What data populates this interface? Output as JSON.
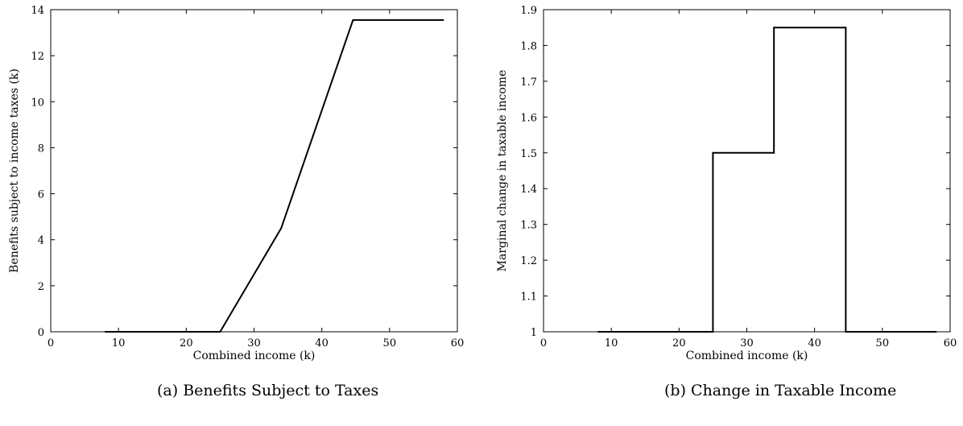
{
  "chart_data": [
    {
      "type": "line",
      "caption": "(a) Benefits Subject to Taxes",
      "xlabel": "Combined income (k)",
      "ylabel": "Benefits subject to income taxes (k)",
      "xlim": [
        0,
        60
      ],
      "ylim": [
        0,
        14
      ],
      "xticks": [
        0,
        10,
        20,
        30,
        40,
        50,
        60
      ],
      "yticks": [
        0,
        2,
        4,
        6,
        8,
        10,
        12,
        14
      ],
      "grid": false,
      "series": [
        {
          "x": [
            8,
            25,
            34,
            44.6,
            58
          ],
          "y": [
            0,
            0,
            4.5,
            13.55,
            13.55
          ]
        }
      ]
    },
    {
      "type": "line",
      "caption": "(b) Change in Taxable Income",
      "xlabel": "Combined income (k)",
      "ylabel": "Marginal change in taxable income",
      "xlim": [
        0,
        60
      ],
      "ylim": [
        1,
        1.9
      ],
      "xticks": [
        0,
        10,
        20,
        30,
        40,
        50,
        60
      ],
      "yticks": [
        1,
        1.1,
        1.2,
        1.3,
        1.4,
        1.5,
        1.6,
        1.7,
        1.8,
        1.9
      ],
      "grid": false,
      "series": [
        {
          "x": [
            8,
            25,
            25,
            34,
            34,
            44.6,
            44.6,
            58
          ],
          "y": [
            1,
            1,
            1.5,
            1.5,
            1.85,
            1.85,
            1,
            1
          ]
        }
      ]
    }
  ]
}
